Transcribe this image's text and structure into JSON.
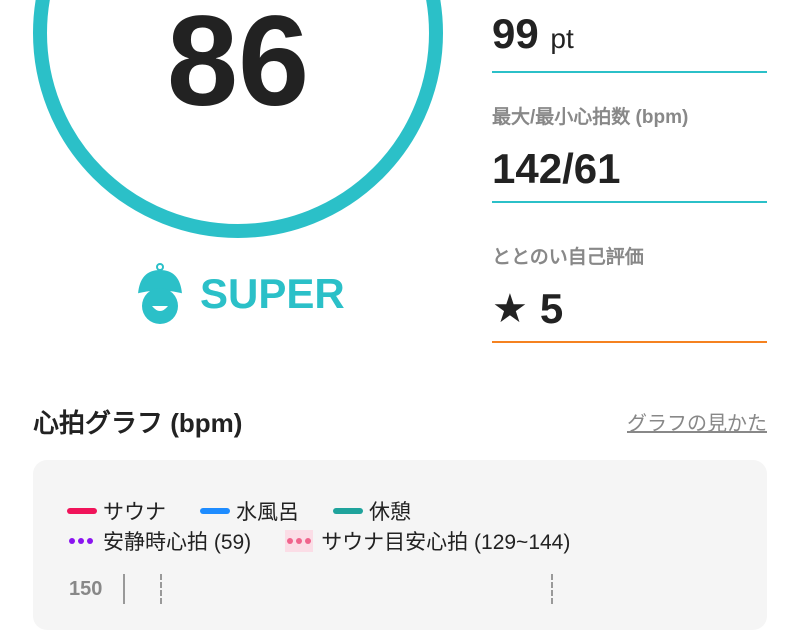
{
  "score": {
    "value": "86",
    "rank": "SUPER",
    "rank_icon": "sauna-hat-face-icon"
  },
  "stats": [
    {
      "value": "99",
      "unit": "pt"
    },
    {
      "label": "最大/最小心拍数 (bpm)",
      "value": "142/61"
    },
    {
      "label": "ととのい自己評価",
      "value": "5",
      "icon": "star-icon"
    }
  ],
  "graph": {
    "title": "心拍グラフ (bpm)",
    "howto_link": "グラフの見かた",
    "legend": [
      {
        "label": "サウナ",
        "color": "#f0145a"
      },
      {
        "label": "水風呂",
        "color": "#1e8cff"
      },
      {
        "label": "休憩",
        "color": "#1fa39c"
      }
    ],
    "legend_lines": [
      {
        "label": "安静時心拍 (59)",
        "color": "#8a14f0"
      },
      {
        "label": "サウナ目安心拍 (129~144)",
        "color": "#f0648c"
      }
    ],
    "y_ticks": [
      "150"
    ]
  },
  "colors": {
    "accent": "#2bc0c8",
    "rating_line": "#f58220"
  }
}
